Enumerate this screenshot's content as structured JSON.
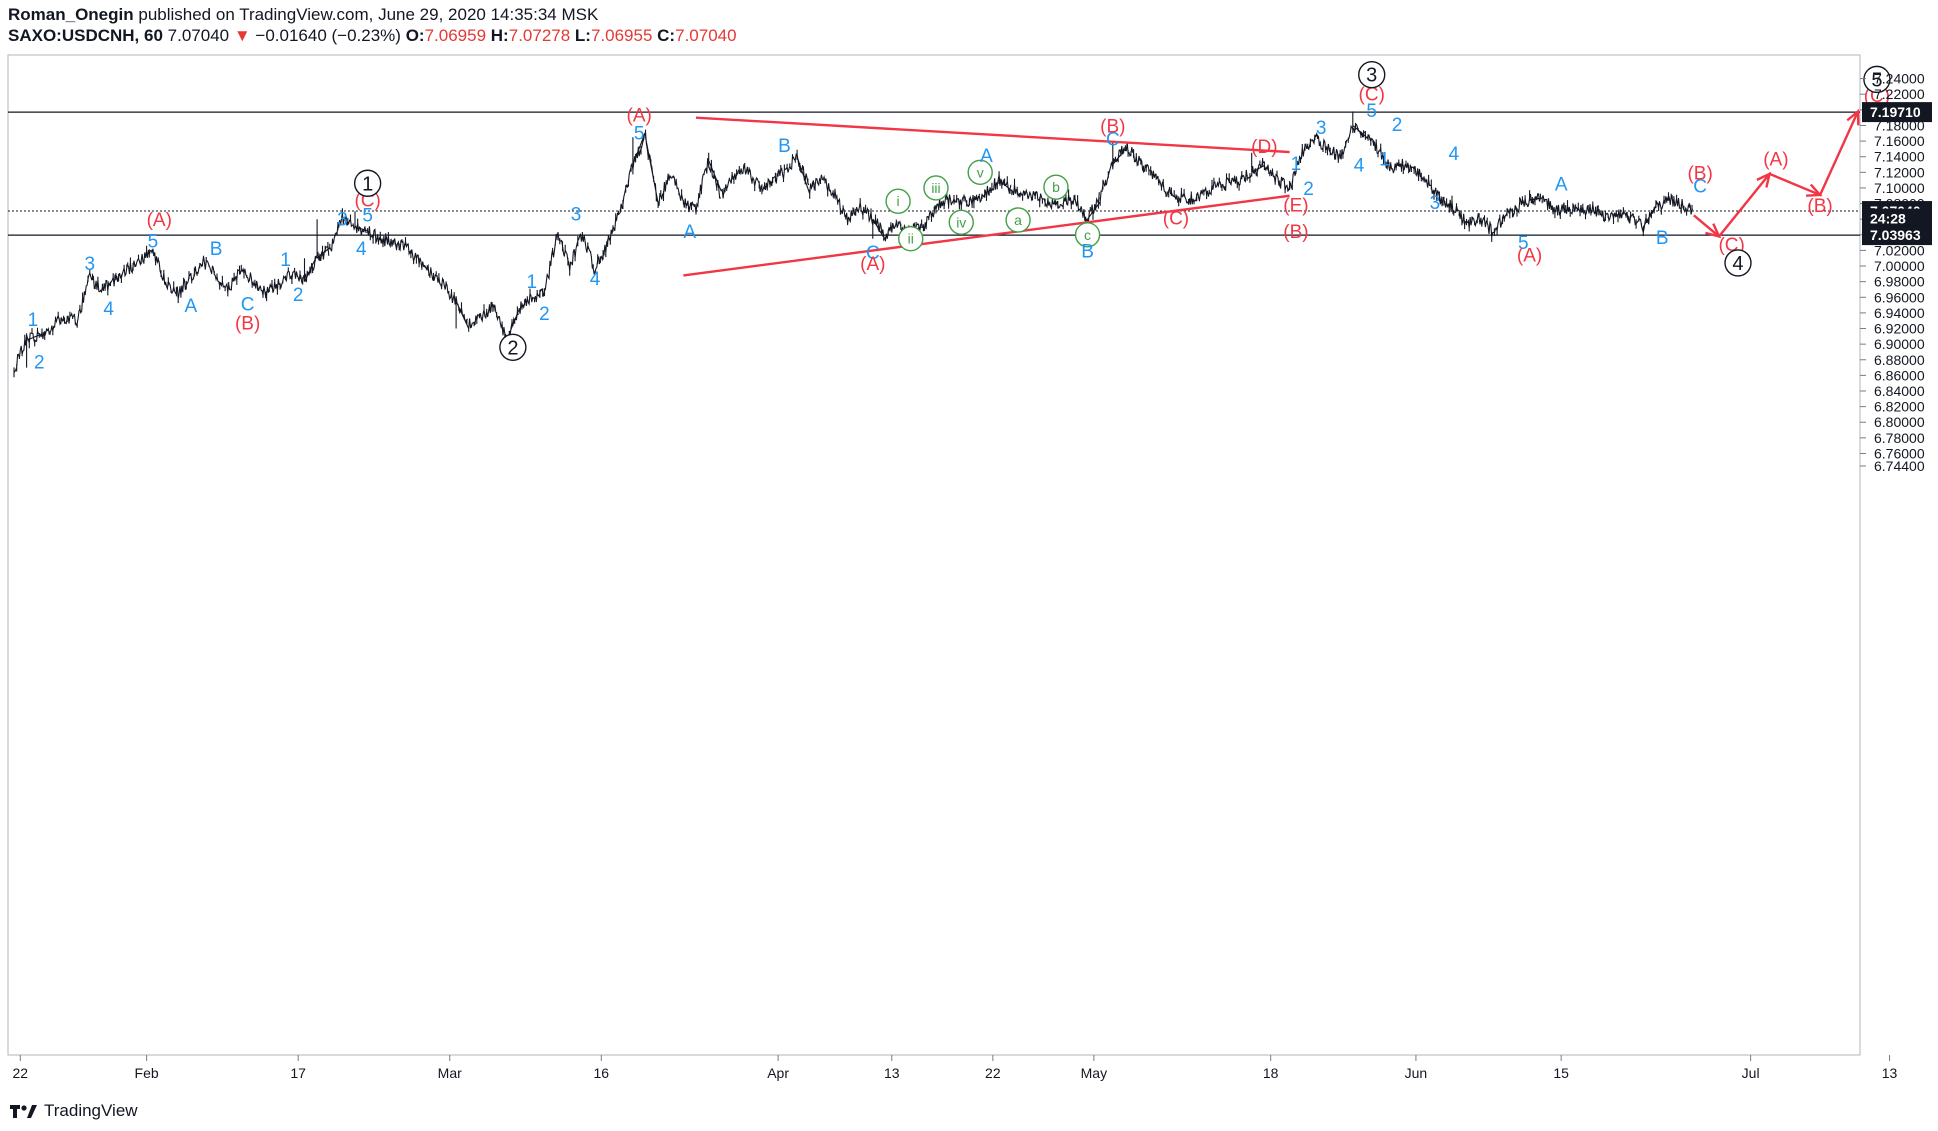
{
  "header": {
    "author": "Roman_Onegin",
    "published": "published on TradingView.com, June 29, 2020 14:35:34 MSK",
    "symbol": "SAXO:USDCNH, 60",
    "last": "7.07040",
    "change": "−0.01640 (−0.23%)",
    "o_label": "O:",
    "o": "7.06959",
    "h_label": "H:",
    "h": "7.07278",
    "l_label": "L:",
    "l": "7.06955",
    "c_label": "C:",
    "c": "7.07040"
  },
  "footer": {
    "brand": "TradingView"
  },
  "colors": {
    "blue": "#2196f3",
    "red": "#f23645",
    "green": "#43a047",
    "black": "#131722",
    "grid": "#d6d6d6"
  },
  "chart_data": {
    "type": "line",
    "ylim": [
      6.74,
      7.25
    ],
    "yticks": [
      "7.24000",
      "7.22000",
      "7.20000",
      "7.18000",
      "7.16000",
      "7.14000",
      "7.12000",
      "7.10000",
      "7.08000",
      "7.06000",
      "7.04000",
      "7.02000",
      "7.00000",
      "6.98000",
      "6.96000",
      "6.94000",
      "6.92000",
      "6.90000",
      "6.88000",
      "6.86000",
      "6.84000",
      "6.82000",
      "6.80000",
      "6.78000",
      "6.76000",
      "6.74400"
    ],
    "xticks": [
      {
        "label": "22",
        "t": 0.5
      },
      {
        "label": "Feb",
        "t": 10.5
      },
      {
        "label": "17",
        "t": 22.5
      },
      {
        "label": "Mar",
        "t": 34.5
      },
      {
        "label": "16",
        "t": 46.5
      },
      {
        "label": "Apr",
        "t": 60.5
      },
      {
        "label": "13",
        "t": 69.5
      },
      {
        "label": "22",
        "t": 77.5
      },
      {
        "label": "May",
        "t": 85.5
      },
      {
        "label": "18",
        "t": 99.5
      },
      {
        "label": "Jun",
        "t": 111
      },
      {
        "label": "15",
        "t": 122.5
      },
      {
        "label": "Jul",
        "t": 137.5
      },
      {
        "label": "13",
        "t": 148.5
      }
    ],
    "price_tags": [
      {
        "label": "7.19710",
        "price": 7.1971,
        "style": "black"
      },
      {
        "label": "7.07040",
        "price": 7.0704,
        "style": "black"
      },
      {
        "label": "24:28",
        "price": 7.0607,
        "style": "black"
      },
      {
        "label": "7.03963",
        "price": 7.03963,
        "style": "black"
      }
    ],
    "hlines": [
      {
        "price": 7.1971,
        "style": "solid"
      },
      {
        "price": 7.0704,
        "style": "dotted"
      },
      {
        "price": 7.03963,
        "style": "solid"
      }
    ],
    "anchors": [
      [
        0,
        6.87
      ],
      [
        1,
        6.905
      ],
      [
        2,
        6.91
      ],
      [
        4,
        6.935
      ],
      [
        5,
        6.93
      ],
      [
        6,
        6.985
      ],
      [
        7,
        6.97
      ],
      [
        9,
        6.995
      ],
      [
        11,
        7.02
      ],
      [
        12,
        6.98
      ],
      [
        13,
        6.965
      ],
      [
        15,
        7.005
      ],
      [
        17,
        6.97
      ],
      [
        18,
        6.995
      ],
      [
        20,
        6.965
      ],
      [
        22,
        6.99
      ],
      [
        23,
        6.98
      ],
      [
        24,
        7.01
      ],
      [
        25,
        7.02
      ],
      [
        26,
        7.06
      ],
      [
        27,
        7.05
      ],
      [
        28,
        7.045
      ],
      [
        29,
        7.035
      ],
      [
        31,
        7.025
      ],
      [
        33,
        6.99
      ],
      [
        34,
        6.975
      ],
      [
        35,
        6.955
      ],
      [
        36,
        6.925
      ],
      [
        37,
        6.935
      ],
      [
        38,
        6.95
      ],
      [
        39,
        6.905
      ],
      [
        40,
        6.945
      ],
      [
        41,
        6.96
      ],
      [
        42,
        6.965
      ],
      [
        43,
        7.04
      ],
      [
        44,
        7.0
      ],
      [
        45,
        7.04
      ],
      [
        46,
        6.995
      ],
      [
        47,
        7.03
      ],
      [
        48,
        7.07
      ],
      [
        49,
        7.13
      ],
      [
        50,
        7.165
      ],
      [
        51,
        7.08
      ],
      [
        52,
        7.12
      ],
      [
        53,
        7.08
      ],
      [
        54,
        7.075
      ],
      [
        55,
        7.135
      ],
      [
        56,
        7.09
      ],
      [
        57,
        7.115
      ],
      [
        58,
        7.125
      ],
      [
        59,
        7.1
      ],
      [
        61,
        7.12
      ],
      [
        62,
        7.14
      ],
      [
        63,
        7.1
      ],
      [
        64,
        7.11
      ],
      [
        65,
        7.09
      ],
      [
        66,
        7.06
      ],
      [
        67,
        7.075
      ],
      [
        68,
        7.06
      ],
      [
        69,
        7.04
      ],
      [
        70,
        7.055
      ],
      [
        71,
        7.045
      ],
      [
        72,
        7.05
      ],
      [
        73,
        7.075
      ],
      [
        74,
        7.085
      ],
      [
        75,
        7.08
      ],
      [
        76,
        7.085
      ],
      [
        77,
        7.095
      ],
      [
        78,
        7.11
      ],
      [
        79,
        7.1
      ],
      [
        80,
        7.09
      ],
      [
        81,
        7.09
      ],
      [
        82,
        7.08
      ],
      [
        84,
        7.085
      ],
      [
        85,
        7.06
      ],
      [
        86,
        7.09
      ],
      [
        87,
        7.13
      ],
      [
        88,
        7.155
      ],
      [
        89,
        7.135
      ],
      [
        90,
        7.12
      ],
      [
        91,
        7.1
      ],
      [
        92,
        7.09
      ],
      [
        93,
        7.085
      ],
      [
        94,
        7.09
      ],
      [
        95,
        7.1
      ],
      [
        96,
        7.105
      ],
      [
        97,
        7.11
      ],
      [
        98,
        7.12
      ],
      [
        99,
        7.13
      ],
      [
        100,
        7.11
      ],
      [
        101,
        7.1
      ],
      [
        102,
        7.145
      ],
      [
        103,
        7.165
      ],
      [
        104,
        7.15
      ],
      [
        105,
        7.14
      ],
      [
        106,
        7.18
      ],
      [
        107,
        7.165
      ],
      [
        108,
        7.15
      ],
      [
        109,
        7.125
      ],
      [
        110,
        7.13
      ],
      [
        111,
        7.125
      ],
      [
        112,
        7.105
      ],
      [
        113,
        7.085
      ],
      [
        114,
        7.075
      ],
      [
        115,
        7.055
      ],
      [
        116,
        7.06
      ],
      [
        117,
        7.045
      ],
      [
        118,
        7.06
      ],
      [
        119,
        7.075
      ],
      [
        120,
        7.085
      ],
      [
        121,
        7.09
      ],
      [
        122,
        7.07
      ],
      [
        123,
        7.075
      ],
      [
        124,
        7.07
      ],
      [
        125,
        7.075
      ],
      [
        126,
        7.06
      ],
      [
        127,
        7.07
      ],
      [
        128,
        7.06
      ],
      [
        129,
        7.05
      ],
      [
        130,
        7.075
      ],
      [
        131,
        7.085
      ],
      [
        132,
        7.08
      ],
      [
        133,
        7.07
      ]
    ],
    "spikes": [
      [
        1,
        6.87
      ],
      [
        8,
        6.97
      ],
      [
        23,
        7.01
      ],
      [
        24,
        7.06
      ],
      [
        27,
        7.07
      ],
      [
        35,
        6.92
      ],
      [
        39,
        6.905
      ],
      [
        49,
        7.165
      ],
      [
        50,
        7.165
      ],
      [
        55,
        7.145
      ],
      [
        62,
        7.145
      ],
      [
        68,
        7.035
      ],
      [
        71,
        7.04
      ],
      [
        78,
        7.105
      ],
      [
        85,
        7.05
      ],
      [
        87,
        7.158
      ],
      [
        98,
        7.145
      ],
      [
        106,
        7.198
      ],
      [
        120,
        7.097
      ],
      [
        129,
        7.04
      ]
    ],
    "trendlines": [
      {
        "from": [
          54,
          7.19
        ],
        "to": [
          101,
          7.146
        ]
      },
      {
        "from": [
          53,
          6.988
        ],
        "to": [
          101,
          7.09
        ]
      }
    ],
    "projection": [
      [
        133,
        7.065
      ],
      [
        135,
        7.038
      ],
      [
        139,
        7.118
      ],
      [
        143,
        7.091
      ],
      [
        146,
        7.198
      ]
    ],
    "wave_labels": [
      {
        "text": "2",
        "t": 2,
        "p": 6.878,
        "c": "blue"
      },
      {
        "text": "1",
        "t": 1.5,
        "p": 6.932,
        "c": "blue"
      },
      {
        "text": "3",
        "t": 6,
        "p": 7.004,
        "c": "blue"
      },
      {
        "text": "4",
        "t": 7.5,
        "p": 6.946,
        "c": "blue"
      },
      {
        "text": "5",
        "t": 11,
        "p": 7.033,
        "c": "blue"
      },
      {
        "text": "(A)",
        "t": 11.5,
        "p": 7.06,
        "c": "red"
      },
      {
        "text": "A",
        "t": 14,
        "p": 6.95,
        "c": "blue"
      },
      {
        "text": "B",
        "t": 16,
        "p": 7.023,
        "c": "blue"
      },
      {
        "text": "(B)",
        "t": 18.5,
        "p": 6.928,
        "c": "red"
      },
      {
        "text": "C",
        "t": 18.5,
        "p": 6.952,
        "c": "blue"
      },
      {
        "text": "1",
        "t": 21.5,
        "p": 7.009,
        "c": "blue"
      },
      {
        "text": "2",
        "t": 22.5,
        "p": 6.964,
        "c": "blue"
      },
      {
        "text": "3",
        "t": 26,
        "p": 7.061,
        "c": "blue"
      },
      {
        "text": "4",
        "t": 27.5,
        "p": 7.023,
        "c": "blue"
      },
      {
        "text": "5",
        "t": 28,
        "p": 7.066,
        "c": "blue"
      },
      {
        "text": "(C)",
        "t": 28,
        "p": 7.085,
        "c": "red"
      },
      {
        "text": "1",
        "t": 28,
        "p": 7.106,
        "c": "black",
        "circle": true
      },
      {
        "text": "2",
        "t": 39.5,
        "p": 6.896,
        "c": "black",
        "circle": true
      },
      {
        "text": "2",
        "t": 42,
        "p": 6.94,
        "c": "blue"
      },
      {
        "text": "1",
        "t": 41,
        "p": 6.981,
        "c": "blue"
      },
      {
        "text": "4",
        "t": 46,
        "p": 6.985,
        "c": "blue"
      },
      {
        "text": "3",
        "t": 44.5,
        "p": 7.067,
        "c": "blue"
      },
      {
        "text": "5",
        "t": 49.5,
        "p": 7.171,
        "c": "blue"
      },
      {
        "text": "(A)",
        "t": 49.5,
        "p": 7.194,
        "c": "red"
      },
      {
        "text": "A",
        "t": 53.5,
        "p": 7.045,
        "c": "blue"
      },
      {
        "text": "B",
        "t": 61,
        "p": 7.155,
        "c": "blue"
      },
      {
        "text": "C",
        "t": 68,
        "p": 7.018,
        "c": "blue"
      },
      {
        "text": "(A)",
        "t": 68,
        "p": 7.004,
        "c": "red"
      },
      {
        "text": "i",
        "t": 70,
        "p": 7.083,
        "c": "green",
        "circle": true
      },
      {
        "text": "ii",
        "t": 71,
        "p": 7.035,
        "c": "green",
        "circle": true
      },
      {
        "text": "iii",
        "t": 73,
        "p": 7.1,
        "c": "green",
        "circle": true
      },
      {
        "text": "iv",
        "t": 75,
        "p": 7.056,
        "c": "green",
        "circle": true
      },
      {
        "text": "v",
        "t": 76.5,
        "p": 7.12,
        "c": "green",
        "circle": true
      },
      {
        "text": "A",
        "t": 77,
        "p": 7.142,
        "c": "blue"
      },
      {
        "text": "a",
        "t": 79.5,
        "p": 7.059,
        "c": "green",
        "circle": true
      },
      {
        "text": "b",
        "t": 82.5,
        "p": 7.101,
        "c": "green",
        "circle": true
      },
      {
        "text": "c",
        "t": 85,
        "p": 7.04,
        "c": "green",
        "circle": true
      },
      {
        "text": "B",
        "t": 85,
        "p": 7.02,
        "c": "blue"
      },
      {
        "text": "C",
        "t": 87,
        "p": 7.163,
        "c": "blue"
      },
      {
        "text": "(B)",
        "t": 87,
        "p": 7.18,
        "c": "red"
      },
      {
        "text": "(C)",
        "t": 92,
        "p": 7.062,
        "c": "red"
      },
      {
        "text": "(D)",
        "t": 99,
        "p": 7.154,
        "c": "red"
      },
      {
        "text": "(E)",
        "t": 101.5,
        "p": 7.079,
        "c": "red"
      },
      {
        "text": "(B)",
        "t": 101.5,
        "p": 7.045,
        "c": "red"
      },
      {
        "text": "1",
        "t": 101.5,
        "p": 7.132,
        "c": "blue"
      },
      {
        "text": "2",
        "t": 102.5,
        "p": 7.1,
        "c": "blue"
      },
      {
        "text": "3",
        "t": 103.5,
        "p": 7.178,
        "c": "blue"
      },
      {
        "text": "4",
        "t": 106.5,
        "p": 7.13,
        "c": "blue"
      },
      {
        "text": "1",
        "t": 108.5,
        "p": 7.138,
        "c": "blue"
      },
      {
        "text": "5",
        "t": 107.5,
        "p": 7.2,
        "c": "blue"
      },
      {
        "text": "2",
        "t": 109.5,
        "p": 7.182,
        "c": "blue"
      },
      {
        "text": "(C)",
        "t": 107.5,
        "p": 7.221,
        "c": "red"
      },
      {
        "text": "3",
        "t": 107.5,
        "p": 7.245,
        "c": "black",
        "circle": true
      },
      {
        "text": "4",
        "t": 114,
        "p": 7.145,
        "c": "blue"
      },
      {
        "text": "3",
        "t": 112.5,
        "p": 7.082,
        "c": "blue"
      },
      {
        "text": "5",
        "t": 119.5,
        "p": 7.031,
        "c": "blue"
      },
      {
        "text": "(A)",
        "t": 120,
        "p": 7.015,
        "c": "red"
      },
      {
        "text": "A",
        "t": 122.5,
        "p": 7.106,
        "c": "blue"
      },
      {
        "text": "B",
        "t": 130.5,
        "p": 7.037,
        "c": "blue"
      },
      {
        "text": "C",
        "t": 133.5,
        "p": 7.103,
        "c": "blue"
      },
      {
        "text": "(B)",
        "t": 133.5,
        "p": 7.12,
        "c": "red"
      },
      {
        "text": "(C)",
        "t": 136,
        "p": 7.028,
        "c": "red"
      },
      {
        "text": "4",
        "t": 136.5,
        "p": 7.004,
        "c": "black",
        "circle": true
      },
      {
        "text": "(A)",
        "t": 139.5,
        "p": 7.138,
        "c": "red"
      },
      {
        "text": "(B)",
        "t": 143,
        "p": 7.078,
        "c": "red"
      },
      {
        "text": "(C)",
        "t": 147.5,
        "p": 7.219,
        "c": "red"
      },
      {
        "text": "5",
        "t": 147.5,
        "p": 7.239,
        "c": "black",
        "circle": true
      }
    ]
  }
}
